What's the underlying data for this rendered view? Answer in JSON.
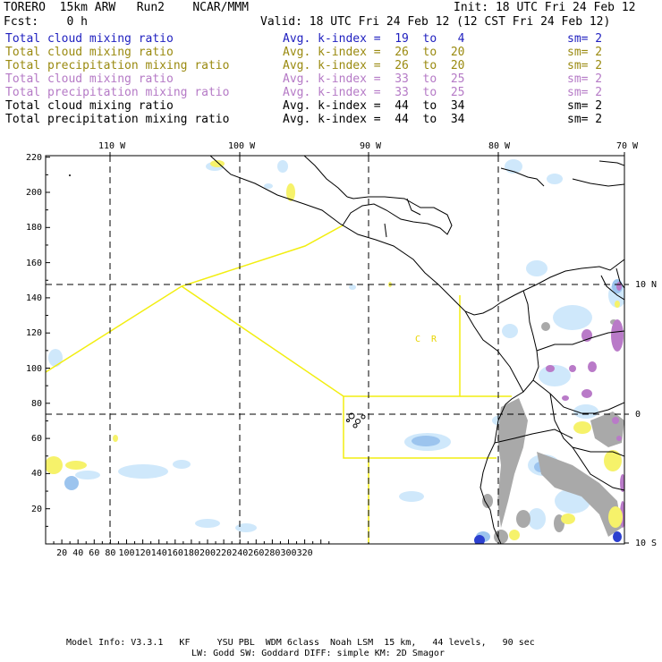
{
  "header": {
    "title": "TORERO  15km ARW   Run2    NCAR/MMM",
    "init": "Init: 18 UTC Fri 24 Feb 12",
    "fcst": "Fcst:    0 h",
    "valid": "Valid: 18 UTC Fri 24 Feb 12 (12 CST Fri 24 Feb 12)"
  },
  "legend": [
    {
      "field": "Total cloud mixing ratio",
      "kindex": "Avg. k-index =  19  to   4",
      "sm": "sm= 2",
      "color": "#1f1fbf"
    },
    {
      "field": "Total cloud mixing ratio",
      "kindex": "Avg. k-index =  26  to  20",
      "sm": "sm= 2",
      "color": "#9a8a10"
    },
    {
      "field": "Total precipitation mixing ratio",
      "kindex": "Avg. k-index =  26  to  20",
      "sm": "sm= 2",
      "color": "#9a8a10"
    },
    {
      "field": "Total cloud mixing ratio",
      "kindex": "Avg. k-index =  33  to  25",
      "sm": "sm= 2",
      "color": "#b57ac6"
    },
    {
      "field": "Total precipitation mixing ratio",
      "kindex": "Avg. k-index =  33  to  25",
      "sm": "sm= 2",
      "color": "#b57ac6"
    },
    {
      "field": "Total cloud mixing ratio",
      "kindex": "Avg. k-index =  44  to  34",
      "sm": "sm= 2",
      "color": "#000000"
    },
    {
      "field": "Total precipitation mixing ratio",
      "kindex": "Avg. k-index =  44  to  34",
      "sm": "sm= 2",
      "color": "#000000"
    }
  ],
  "map": {
    "lon_labels": [
      "110 W",
      "100 W",
      "90 W",
      "80 W",
      "70 W"
    ],
    "lat_labels": [
      "10 N",
      "0",
      "10 S"
    ],
    "x_ticks": [
      "20",
      "40",
      "60",
      "80",
      "100",
      "120",
      "140",
      "160",
      "180",
      "200",
      "220",
      "240",
      "260",
      "280",
      "300",
      "320"
    ],
    "y_ticks": [
      "220",
      "200",
      "180",
      "160",
      "140",
      "120",
      "100",
      "80",
      "60",
      "40",
      "20"
    ],
    "region_label": "C  R",
    "colors": {
      "cloud_light": "#cfe8fb",
      "cloud_blue": "#9cc4ee",
      "cloud_dark": "#2b3fd0",
      "precip_yellow": "#f6f26a",
      "precip_gray": "#a9a9a9",
      "precip_purple": "#b97ac8",
      "boundary": "#f2ee10"
    }
  },
  "footer": {
    "line1": "Model Info: V3.3.1   KF     YSU PBL  WDM 6class  Noah LSM  15 km,   44 levels,   90 sec",
    "line2": "LW: Godd SW: Goddard DIFF: simple KM: 2D Smagor"
  }
}
